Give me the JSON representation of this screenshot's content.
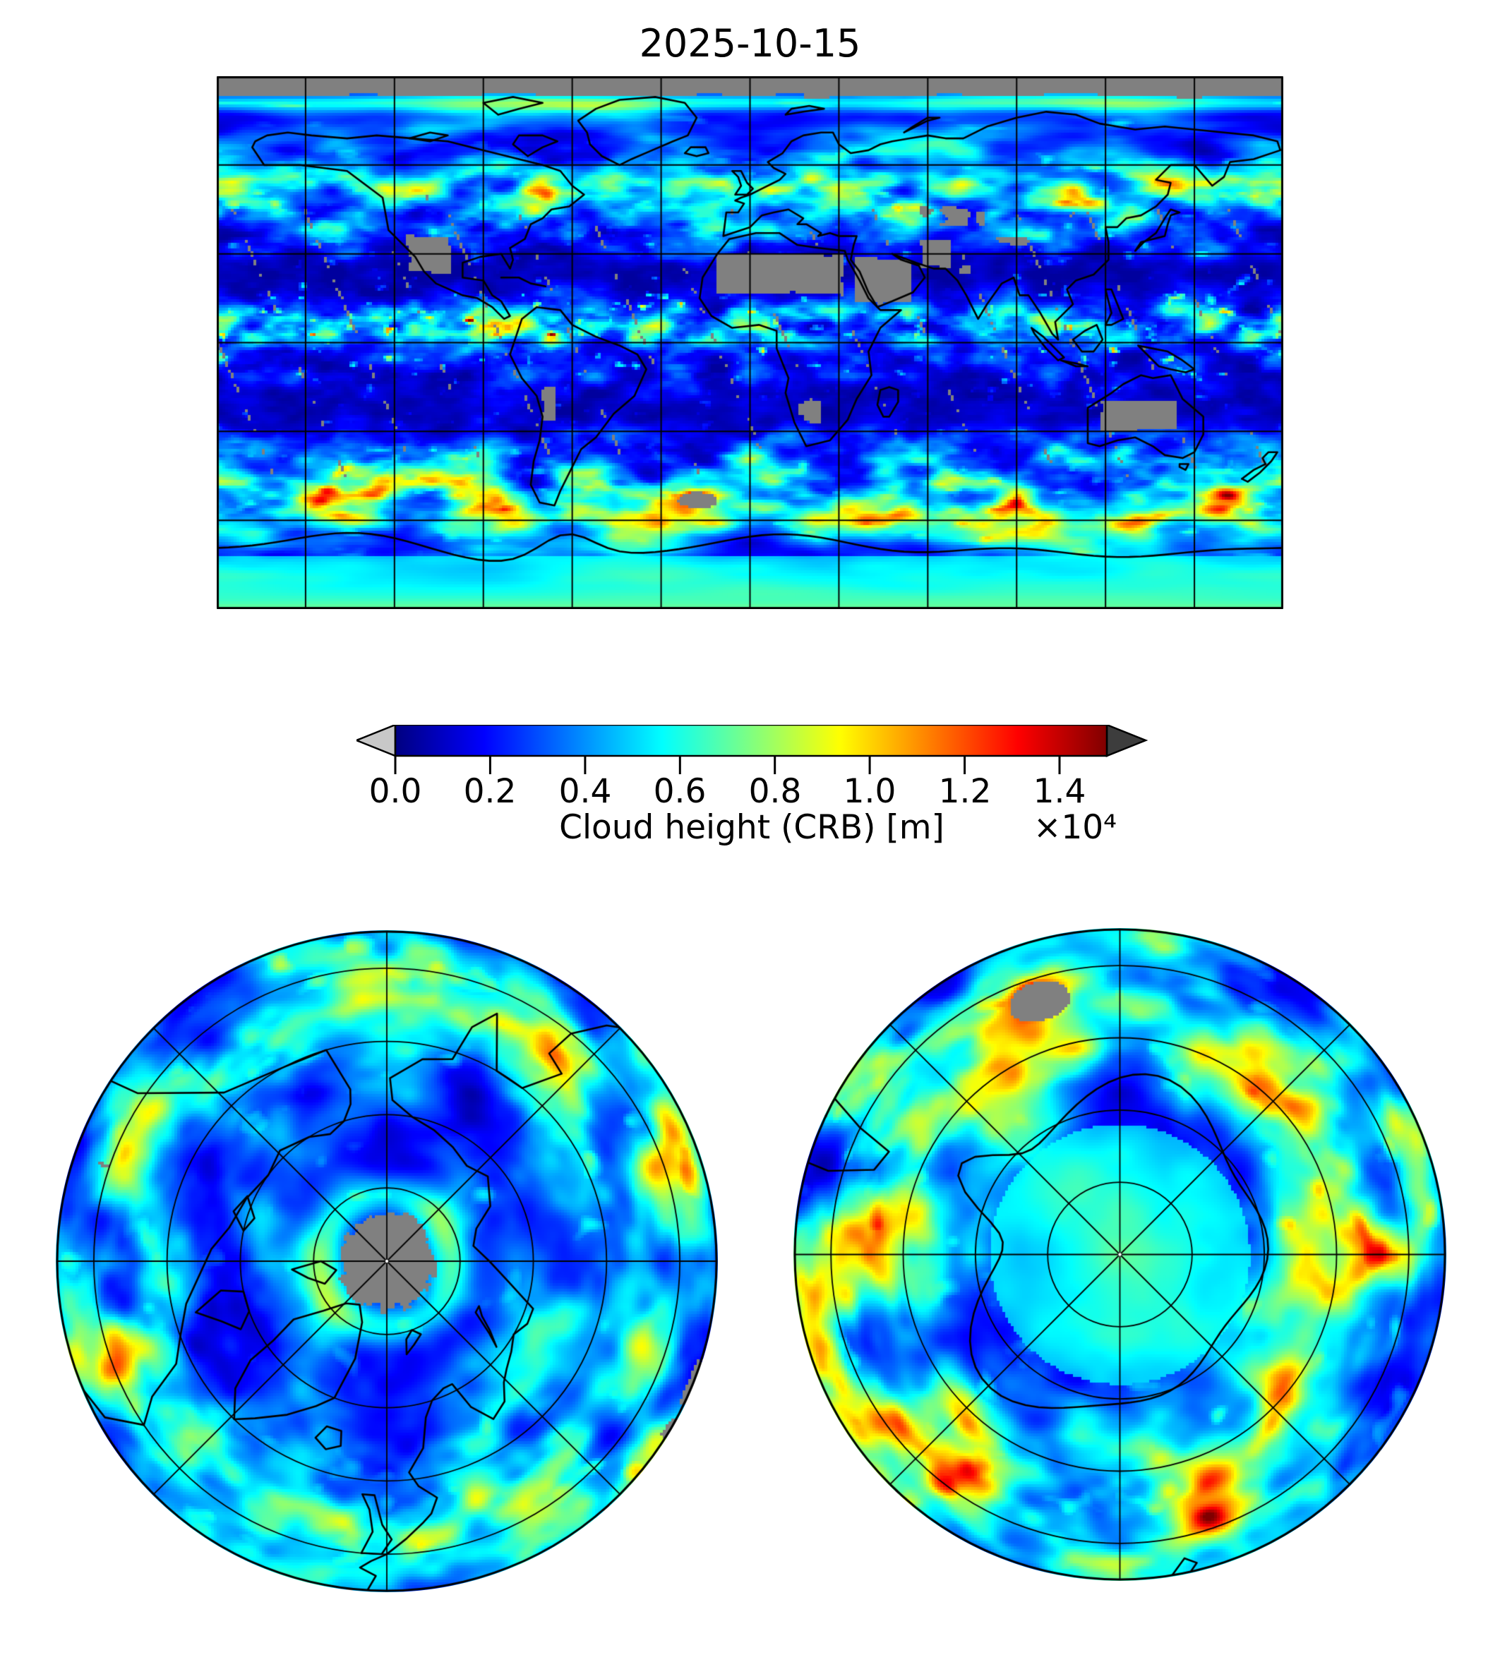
{
  "figure": {
    "title": "2025-10-15"
  },
  "colorbar": {
    "label": "Cloud height (CRB) [m]",
    "multiplier": "×10⁴",
    "ticks": [
      "0.0",
      "0.2",
      "0.4",
      "0.6",
      "0.8",
      "1.0",
      "1.2",
      "1.4"
    ]
  },
  "chart_data": {
    "type": "heatmap",
    "title": "2025-10-15",
    "variable": "Cloud height (CRB)",
    "units": "m",
    "colormap": "jet",
    "value_range": [
      0,
      15000
    ],
    "colorbar_ticks": [
      0,
      2000,
      4000,
      6000,
      8000,
      10000,
      12000,
      14000
    ],
    "tick_multiplier": 10000,
    "extend": "both",
    "under_arrow_color": "#c8c8c8",
    "over_arrow_color": "#3d3d3d",
    "missing_data_color": "#808080",
    "gradient_stops": [
      "#000080",
      "#0000ff",
      "#0080ff",
      "#00ffff",
      "#80ff80",
      "#ffff00",
      "#ff8000",
      "#ff0000",
      "#800000"
    ],
    "panels": [
      {
        "id": "global-map",
        "projection": "equirectangular",
        "lon_range": [
          -180,
          180
        ],
        "lat_range": [
          -90,
          90
        ],
        "gridline_spacing_deg": 30,
        "missing_data": "gray polar cap north of ~83N and desert/land patches"
      },
      {
        "id": "north-polar",
        "projection": "azimuthal polar (North)",
        "lat_edge": 45,
        "parallels": [
          50,
          60,
          70,
          80
        ],
        "meridian_spacing_deg": 45,
        "missing_data": "gray cap north of ~83N at center"
      },
      {
        "id": "south-polar",
        "projection": "azimuthal polar (South)",
        "lat_edge": -45,
        "parallels": [
          -50,
          -60,
          -70,
          -80
        ],
        "meridian_spacing_deg": 45
      }
    ]
  }
}
